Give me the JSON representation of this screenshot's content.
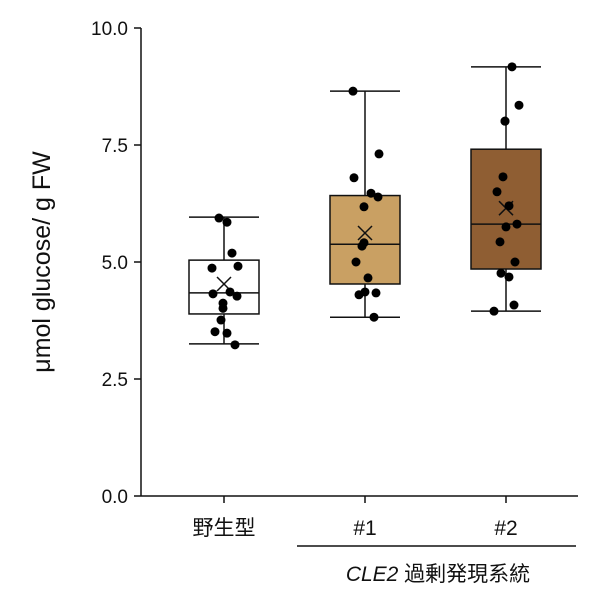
{
  "chart_data": {
    "type": "box",
    "title": "",
    "xlabel": "",
    "ylabel": "μmol glucose/ g FW",
    "ylim": [
      0,
      10
    ],
    "yticks": [
      "0.0",
      "2.5",
      "5.0",
      "7.5",
      "10.0"
    ],
    "ytick_values": [
      0,
      2.5,
      5,
      7.5,
      10
    ],
    "categories": [
      "野生型",
      "#1",
      "#2"
    ],
    "group_label": {
      "italic": "CLE2",
      "rest": " 過剰発現系統"
    },
    "series": [
      {
        "name": "野生型",
        "color": "#ffffff",
        "whisker_low": 3.25,
        "q1": 3.89,
        "median": 4.34,
        "q3": 5.04,
        "whisker_high": 5.96,
        "mean": 4.53,
        "points": [
          5.94,
          5.85,
          5.19,
          4.87,
          4.91,
          4.32,
          4.36,
          4.27,
          4.12,
          4.01,
          3.76,
          3.51,
          3.48,
          3.23
        ]
      },
      {
        "name": "#1",
        "color": "#c9a063",
        "whisker_low": 3.82,
        "q1": 4.53,
        "median": 5.38,
        "q3": 6.42,
        "whisker_high": 8.65,
        "mean": 5.62,
        "points": [
          8.65,
          7.31,
          6.8,
          6.47,
          6.39,
          6.18,
          5.41,
          5.34,
          5.0,
          4.66,
          4.34,
          4.36,
          4.3,
          3.82
        ]
      },
      {
        "name": "#2",
        "color": "#8f5e33",
        "whisker_low": 3.95,
        "q1": 4.85,
        "median": 5.81,
        "q3": 7.41,
        "whisker_high": 9.17,
        "mean": 6.15,
        "points": [
          9.17,
          8.35,
          8.01,
          8.01,
          6.82,
          6.5,
          6.2,
          5.81,
          5.75,
          5.43,
          5.0,
          4.76,
          4.68,
          4.08,
          3.95
        ]
      }
    ]
  }
}
